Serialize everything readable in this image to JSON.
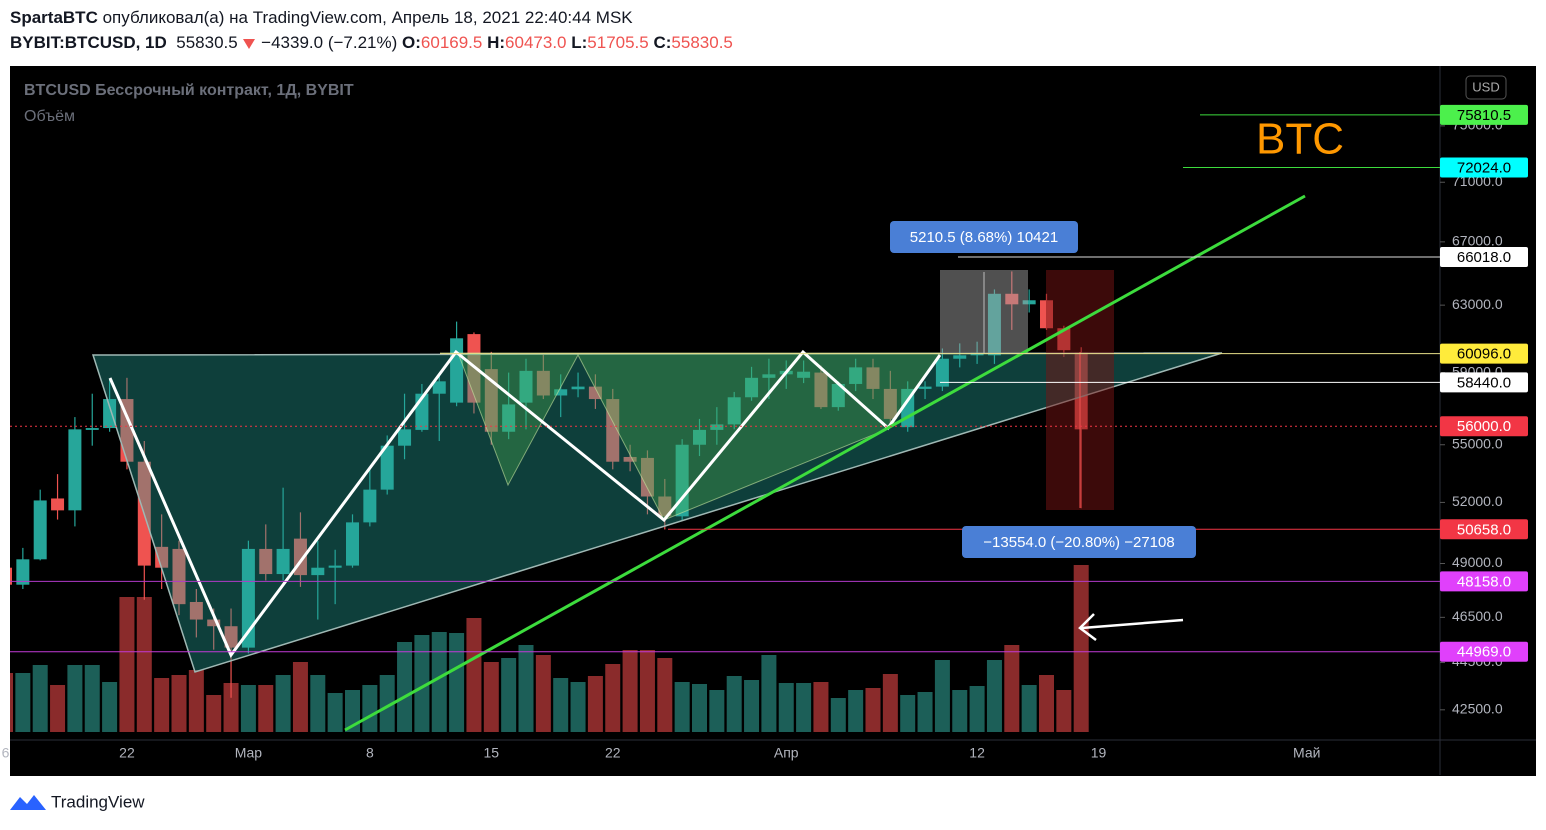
{
  "header": {
    "author": "SpartaBTC",
    "published": "опубликовал(а) на TradingView.com, Апрель 18, 2021 22:40:44 MSK",
    "symbol": "BYBIT:BTCUSD, 1D",
    "price": "55830.5",
    "change": "−4339.0 (−7.21%)",
    "ohlc": [
      {
        "key": "O:",
        "value": "60169.5"
      },
      {
        "key": "H:",
        "value": "60473.0"
      },
      {
        "key": "L:",
        "value": "51705.5"
      },
      {
        "key": "C:",
        "value": "55830.5"
      }
    ]
  },
  "footer": {
    "brand": "TradingView"
  },
  "chart_data": {
    "type": "candlestick",
    "title": "BTCUSD Бессрочный контракт, 1Д, BYBIT",
    "currency": "USD",
    "label": "BTC",
    "measurements": [
      "5210.5 (8.68%) 10421",
      "−13554.0 (−20.80%) −27108"
    ],
    "categories": [
      "6",
      null,
      null,
      null,
      null,
      null,
      null,
      "22",
      null,
      null,
      null,
      null,
      null,
      null,
      "Мар",
      null,
      null,
      null,
      null,
      null,
      null,
      "8",
      null,
      null,
      null,
      null,
      null,
      null,
      "15",
      null,
      null,
      null,
      null,
      null,
      null,
      "22",
      null,
      null,
      null,
      null,
      null,
      null,
      null,
      null,
      null,
      "Апр",
      null,
      null,
      null,
      null,
      null,
      null,
      null,
      null,
      null,
      null,
      "12",
      null,
      null,
      null,
      null,
      null,
      null,
      "19",
      null,
      null,
      null,
      null,
      null,
      null,
      null,
      null,
      null,
      null,
      null,
      "Май"
    ],
    "open": [
      48800,
      48000,
      49200,
      52200,
      51600,
      55800,
      55900,
      57500,
      54100,
      49800,
      49700,
      47200,
      46400,
      46100,
      45150,
      49700,
      48500,
      50200,
      48450,
      48800,
      48900,
      51000,
      52650,
      54950,
      55800,
      57800,
      57300,
      61250,
      59200,
      55700,
      57300,
      59100,
      57700,
      58050,
      58200,
      57500,
      54350,
      54300,
      52300,
      51300,
      55000,
      55800,
      56100,
      57600,
      58700,
      58900,
      58700,
      59000,
      57050,
      58350,
      59300,
      58070,
      55950,
      58070,
      58200,
      59800,
      60000,
      60000,
      63700,
      63050,
      63300,
      61600,
      60169.5,
      null,
      null,
      null,
      null,
      null,
      null,
      null,
      null,
      null,
      null,
      null,
      null,
      null
    ],
    "high": [
      48970,
      49750,
      52650,
      53450,
      56500,
      57800,
      58600,
      58700,
      55200,
      51400,
      50100,
      47800,
      46900,
      46900,
      50100,
      50900,
      52750,
      51500,
      50100,
      49660,
      51400,
      53700,
      55500,
      57800,
      58350,
      58900,
      62000,
      61350,
      60200,
      59000,
      59800,
      60100,
      58900,
      59000,
      58900,
      58070,
      55000,
      54700,
      53200,
      55300,
      56400,
      57050,
      57900,
      59330,
      59800,
      59700,
      59700,
      59400,
      58500,
      59800,
      59800,
      59100,
      58500,
      58500,
      60400,
      60700,
      60800,
      63970,
      65100,
      63970,
      63700,
      61750,
      60473,
      null,
      null,
      null,
      null,
      null,
      null,
      null,
      null,
      null,
      null,
      null,
      null,
      null
    ],
    "low": [
      47570,
      47800,
      49150,
      51140,
      50800,
      54950,
      55700,
      53700,
      47300,
      47800,
      46600,
      45600,
      45060,
      43000,
      44900,
      48200,
      48200,
      47900,
      46400,
      47100,
      48800,
      50800,
      52400,
      54230,
      55700,
      55200,
      57100,
      56700,
      55000,
      55300,
      55830,
      57500,
      56500,
      57600,
      56950,
      53700,
      53600,
      51400,
      50650,
      51100,
      54400,
      55000,
      55830,
      57400,
      57500,
      58070,
      58400,
      56950,
      56850,
      57950,
      57500,
      56100,
      55700,
      57500,
      57950,
      59300,
      59500,
      59500,
      61500,
      62550,
      61500,
      59900,
      51705.5,
      null,
      null,
      null,
      null,
      null,
      null,
      null,
      null,
      null,
      null,
      null,
      null,
      null
    ],
    "close": [
      48000,
      49200,
      52100,
      51600,
      55830,
      55900,
      57500,
      54100,
      48900,
      48800,
      47100,
      46400,
      46100,
      45150,
      49700,
      48500,
      49700,
      48450,
      48800,
      48900,
      51000,
      52650,
      54950,
      55830,
      57800,
      58500,
      61000,
      57300,
      55700,
      57200,
      59100,
      57700,
      58050,
      58200,
      57500,
      54100,
      54100,
      52300,
      51300,
      55000,
      55800,
      56100,
      57600,
      58700,
      58900,
      59100,
      59050,
      57050,
      58350,
      59300,
      58070,
      56400,
      58070,
      58200,
      59800,
      60000,
      60150,
      63700,
      63050,
      63300,
      61600,
      60300,
      55830.5,
      null,
      null,
      null,
      null,
      null,
      null,
      null,
      null,
      null,
      null,
      null,
      null,
      null
    ],
    "up_color": "#26a69a",
    "down_color": "#ef5350",
    "volume": {
      "name": "Объём",
      "values": [
        59,
        59,
        67,
        47,
        67,
        67,
        50,
        135,
        135,
        54,
        57,
        62,
        37,
        49,
        47,
        47,
        57,
        70,
        57,
        39,
        42,
        47,
        57,
        90,
        97,
        100,
        99,
        114,
        70,
        74,
        87,
        77,
        54,
        50,
        56,
        68,
        82,
        82,
        74,
        50,
        48,
        42,
        56,
        52,
        77,
        49,
        49,
        50,
        34,
        42,
        44,
        58,
        37,
        40,
        72,
        42,
        46,
        72,
        87,
        47,
        57,
        42,
        167,
        null,
        null,
        null,
        null,
        null,
        null,
        null,
        null,
        null,
        null,
        null,
        null,
        null
      ],
      "up_color": "#1c5f58",
      "down_color": "#8a2b2b",
      "lim": [
        0,
        666
      ]
    },
    "ylim": [
      41270,
      79500
    ],
    "log_scale": true,
    "yticks": [
      {
        "value": 42500,
        "label": "42500.0"
      },
      {
        "value": 44500,
        "label": "44500.0"
      },
      {
        "value": 46500,
        "label": "46500.0"
      },
      {
        "value": 49000,
        "label": "49000.0"
      },
      {
        "value": 52000,
        "label": "52000.0"
      },
      {
        "value": 55000,
        "label": "55000.0"
      },
      {
        "value": 59000,
        "label": "59000.0"
      },
      {
        "value": 63000,
        "label": "63000.0"
      },
      {
        "value": 67000,
        "label": "67000.0"
      },
      {
        "value": 71000,
        "label": "71000.0"
      },
      {
        "value": 75000,
        "label": "75000.0"
      }
    ],
    "price_lines": [
      {
        "value": 75810.5,
        "color": "#4cf04c"
      },
      {
        "value": 72024,
        "label": "72024.0",
        "color": "#00ffff"
      },
      {
        "value": 66018,
        "label": "66018.0",
        "color": "#ffffff"
      },
      {
        "value": 60096,
        "label": "60096.0",
        "color": "#ffeb3b"
      },
      {
        "value": 58440,
        "label": "58440.0",
        "color": "#ffffff"
      },
      {
        "value": 56000,
        "label": "56000.0",
        "color": "#f23645"
      },
      {
        "value": 50658,
        "label": "50658.0",
        "color": "#f23645"
      },
      {
        "value": 48158,
        "label": "48158.0",
        "color": "#e040fb"
      },
      {
        "value": 44969,
        "label": "44969.0",
        "color": "#e040fb"
      }
    ]
  }
}
